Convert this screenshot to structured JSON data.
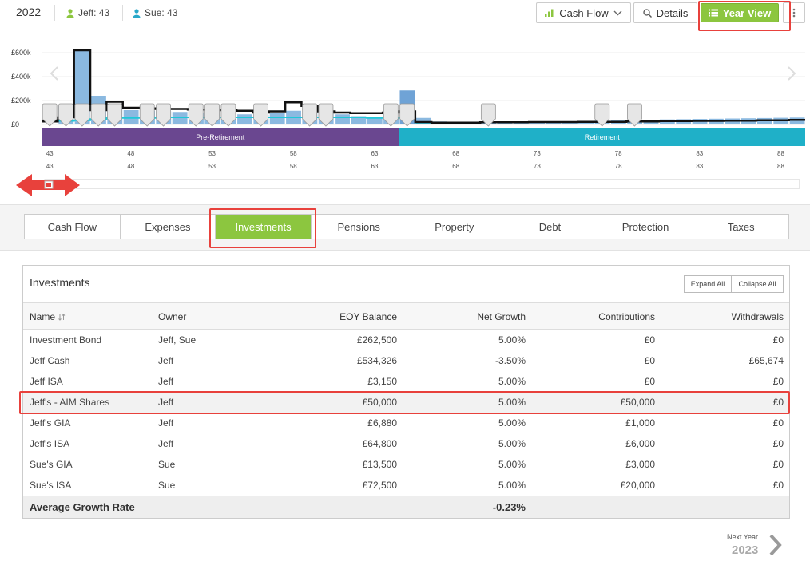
{
  "header": {
    "year": "2022",
    "persons": [
      {
        "name_label": "Jeff: 43",
        "icon": "person-icon",
        "color": "#8cc63f"
      },
      {
        "name_label": "Sue: 43",
        "icon": "person-icon",
        "color": "#29a8c9"
      }
    ],
    "buttons": {
      "cash_flow": "Cash Flow",
      "details": "Details",
      "year_view": "Year View"
    }
  },
  "chart_data": {
    "type": "bar",
    "x_start_age": 43,
    "x_end_age": 90,
    "y_tick_labels": [
      "£600k",
      "£400k",
      "£200k",
      "£0"
    ],
    "ylim": [
      0,
      700000
    ],
    "bars": [
      0,
      155000,
      620000,
      240000,
      150000,
      120000,
      115000,
      110000,
      105000,
      100000,
      95000,
      90000,
      85000,
      80000,
      100000,
      115000,
      110000,
      95000,
      85000,
      70000,
      65000,
      60000,
      285000,
      55000,
      25000,
      22000,
      22000,
      20000,
      20000,
      20000,
      20000,
      22000,
      25000,
      28000,
      32000,
      35000,
      38000,
      40000,
      42000,
      44000,
      46000,
      48000,
      50000,
      52000,
      54000,
      56000,
      58000
    ],
    "line_total": [
      25000,
      60000,
      620000,
      120000,
      190000,
      140000,
      135000,
      130000,
      130000,
      125000,
      125000,
      120000,
      115000,
      100000,
      110000,
      185000,
      155000,
      110000,
      100000,
      95000,
      95000,
      100000,
      110000,
      20000,
      15000,
      15000,
      15000,
      18000,
      18000,
      18000,
      20000,
      20000,
      20000,
      22000,
      22000,
      22000,
      25000,
      25000,
      28000,
      28000,
      30000,
      30000,
      32000,
      32000,
      35000,
      35000,
      38000
    ],
    "line_expense": [
      25000,
      30000,
      35000,
      45000,
      55000,
      55000,
      55000,
      60000,
      60000,
      60000,
      60000,
      60000,
      60000,
      60000,
      60000,
      60000,
      60000,
      60000,
      60000,
      60000,
      55000,
      55000,
      55000,
      15000,
      15000,
      15000,
      15000,
      18000,
      18000,
      18000,
      20000,
      20000,
      20000,
      22000,
      22000,
      22000,
      25000,
      25000,
      28000,
      28000,
      30000,
      30000,
      32000,
      32000,
      35000,
      35000,
      38000
    ],
    "event_marker_ages": [
      43,
      44,
      45,
      46,
      47,
      49,
      50,
      52,
      53,
      54,
      56,
      59,
      60,
      64,
      65,
      70,
      77,
      79
    ],
    "phases": [
      {
        "label": "Pre-Retirement",
        "from_age": 43,
        "to_age": 65,
        "color": "#6a4790"
      },
      {
        "label": "Retirement",
        "from_age": 65,
        "to_age": 90,
        "color": "#1fb0c8"
      }
    ],
    "age_tick_labels": [
      "43",
      "48",
      "53",
      "58",
      "63",
      "68",
      "73",
      "78",
      "83",
      "88"
    ],
    "colors": {
      "bar": "#8bb9e0",
      "bar_highlight": "#6fa3d6",
      "line_total": "#111111",
      "line_expense": "#1fc8d8",
      "marker": "#e6e6e6"
    }
  },
  "tabs": [
    {
      "label": "Cash Flow",
      "active": false
    },
    {
      "label": "Expenses",
      "active": false
    },
    {
      "label": "Investments",
      "active": true
    },
    {
      "label": "Pensions",
      "active": false
    },
    {
      "label": "Property",
      "active": false
    },
    {
      "label": "Debt",
      "active": false
    },
    {
      "label": "Protection",
      "active": false
    },
    {
      "label": "Taxes",
      "active": false
    }
  ],
  "investments": {
    "title": "Investments",
    "expand_all": "Expand All",
    "collapse_all": "Collapse All",
    "columns": {
      "name": "Name",
      "owner": "Owner",
      "eoy_balance": "EOY Balance",
      "net_growth": "Net Growth",
      "contributions": "Contributions",
      "withdrawals": "Withdrawals"
    },
    "rows": [
      {
        "name": "Investment Bond",
        "owner": "Jeff, Sue",
        "eoy_balance": "£262,500",
        "net_growth": "5.00%",
        "contributions": "£0",
        "withdrawals": "£0"
      },
      {
        "name": "Jeff Cash",
        "owner": "Jeff",
        "eoy_balance": "£534,326",
        "net_growth": "-3.50%",
        "contributions": "£0",
        "withdrawals": "£65,674"
      },
      {
        "name": "Jeff ISA",
        "owner": "Jeff",
        "eoy_balance": "£3,150",
        "net_growth": "5.00%",
        "contributions": "£0",
        "withdrawals": "£0"
      },
      {
        "name": "Jeff's - AIM Shares",
        "owner": "Jeff",
        "eoy_balance": "£50,000",
        "net_growth": "5.00%",
        "contributions": "£50,000",
        "withdrawals": "£0"
      },
      {
        "name": "Jeff's GIA",
        "owner": "Jeff",
        "eoy_balance": "£6,880",
        "net_growth": "5.00%",
        "contributions": "£1,000",
        "withdrawals": "£0"
      },
      {
        "name": "Jeff's ISA",
        "owner": "Jeff",
        "eoy_balance": "£64,800",
        "net_growth": "5.00%",
        "contributions": "£6,000",
        "withdrawals": "£0"
      },
      {
        "name": "Sue's GIA",
        "owner": "Sue",
        "eoy_balance": "£13,500",
        "net_growth": "5.00%",
        "contributions": "£3,000",
        "withdrawals": "£0"
      },
      {
        "name": "Sue's ISA",
        "owner": "Sue",
        "eoy_balance": "£72,500",
        "net_growth": "5.00%",
        "contributions": "£20,000",
        "withdrawals": "£0"
      }
    ],
    "footer": {
      "label": "Average Growth Rate",
      "value": "-0.23%"
    }
  },
  "next": {
    "caption": "Next Year",
    "year": "2023"
  }
}
